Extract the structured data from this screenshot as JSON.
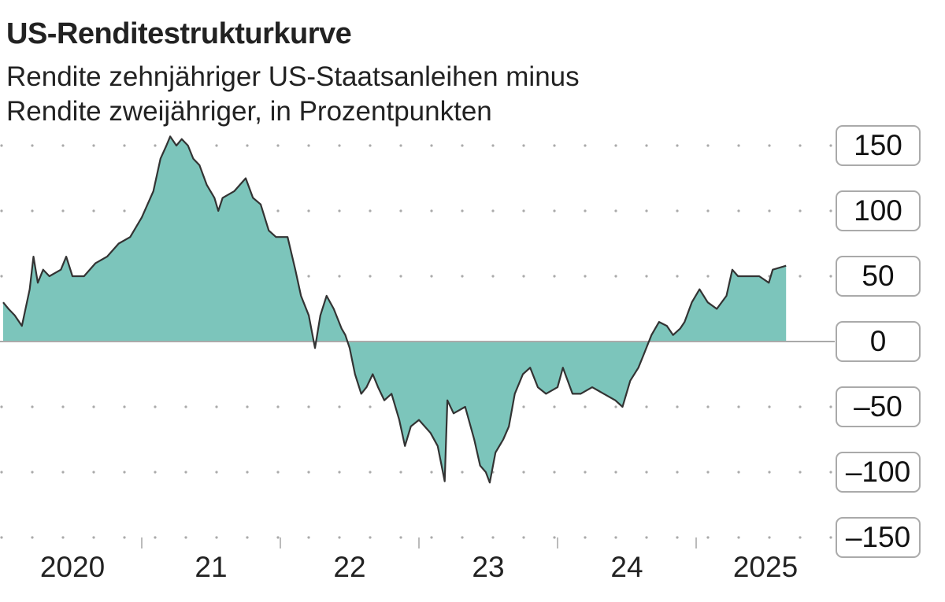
{
  "header": {
    "title": "US-Renditestrukturkurve",
    "subtitle_line1": "Rendite zehnjähriger US-Staatsanleihen minus",
    "subtitle_line2": "Rendite zweijähriger, in Prozentpunkten"
  },
  "chart_data": {
    "type": "area",
    "title": "US-Renditestrukturkurve",
    "subtitle": "Rendite zehnjähriger US-Staatsanleihen minus Rendite zweijähriger, in Prozentpunkten",
    "ylim": [
      -150,
      150
    ],
    "xlim": [
      "2020-01-01",
      "2025-12-31"
    ],
    "grid": "dotted horizontal",
    "fill_color": "#7cc5bb",
    "line_color": "#333333",
    "y_ticks": [
      "150",
      "100",
      "50",
      "0",
      "–50",
      "–100",
      "–150"
    ],
    "y_tick_values": [
      150,
      100,
      50,
      0,
      -50,
      -100,
      -150
    ],
    "x_ticks": [
      "2020",
      "21",
      "22",
      "23",
      "24",
      "2025"
    ],
    "x_tick_years": [
      2020,
      2021,
      2022,
      2023,
      2024,
      2025
    ],
    "points": [
      [
        "2020-01-01",
        30
      ],
      [
        "2020-01-15",
        25
      ],
      [
        "2020-02-01",
        20
      ],
      [
        "2020-02-20",
        12
      ],
      [
        "2020-03-10",
        40
      ],
      [
        "2020-03-20",
        65
      ],
      [
        "2020-04-01",
        45
      ],
      [
        "2020-04-15",
        55
      ],
      [
        "2020-05-01",
        50
      ],
      [
        "2020-06-01",
        55
      ],
      [
        "2020-06-15",
        65
      ],
      [
        "2020-07-01",
        50
      ],
      [
        "2020-08-01",
        50
      ],
      [
        "2020-09-01",
        60
      ],
      [
        "2020-10-01",
        65
      ],
      [
        "2020-11-01",
        75
      ],
      [
        "2020-12-01",
        80
      ],
      [
        "2021-01-01",
        95
      ],
      [
        "2021-02-01",
        115
      ],
      [
        "2021-02-20",
        140
      ],
      [
        "2021-03-05",
        150
      ],
      [
        "2021-03-15",
        157
      ],
      [
        "2021-04-01",
        150
      ],
      [
        "2021-04-15",
        155
      ],
      [
        "2021-05-01",
        150
      ],
      [
        "2021-05-15",
        140
      ],
      [
        "2021-06-01",
        135
      ],
      [
        "2021-06-20",
        120
      ],
      [
        "2021-07-10",
        110
      ],
      [
        "2021-07-20",
        100
      ],
      [
        "2021-08-01",
        110
      ],
      [
        "2021-09-01",
        115
      ],
      [
        "2021-10-01",
        125
      ],
      [
        "2021-10-20",
        110
      ],
      [
        "2021-11-10",
        105
      ],
      [
        "2021-12-01",
        85
      ],
      [
        "2021-12-20",
        80
      ],
      [
        "2022-01-01",
        80
      ],
      [
        "2022-01-20",
        80
      ],
      [
        "2022-02-10",
        55
      ],
      [
        "2022-02-25",
        35
      ],
      [
        "2022-03-15",
        20
      ],
      [
        "2022-04-01",
        -5
      ],
      [
        "2022-04-15",
        20
      ],
      [
        "2022-05-01",
        35
      ],
      [
        "2022-05-20",
        25
      ],
      [
        "2022-06-10",
        10
      ],
      [
        "2022-06-20",
        5
      ],
      [
        "2022-07-01",
        -5
      ],
      [
        "2022-07-15",
        -25
      ],
      [
        "2022-08-01",
        -40
      ],
      [
        "2022-08-15",
        -35
      ],
      [
        "2022-09-01",
        -25
      ],
      [
        "2022-09-15",
        -35
      ],
      [
        "2022-10-01",
        -45
      ],
      [
        "2022-10-20",
        -40
      ],
      [
        "2022-11-10",
        -60
      ],
      [
        "2022-11-25",
        -80
      ],
      [
        "2022-12-10",
        -65
      ],
      [
        "2023-01-01",
        -60
      ],
      [
        "2023-02-01",
        -70
      ],
      [
        "2023-02-20",
        -80
      ],
      [
        "2023-03-08",
        -107
      ],
      [
        "2023-03-15",
        -45
      ],
      [
        "2023-04-01",
        -55
      ],
      [
        "2023-05-01",
        -50
      ],
      [
        "2023-05-25",
        -75
      ],
      [
        "2023-06-10",
        -95
      ],
      [
        "2023-06-25",
        -100
      ],
      [
        "2023-07-05",
        -108
      ],
      [
        "2023-07-20",
        -85
      ],
      [
        "2023-08-10",
        -75
      ],
      [
        "2023-08-25",
        -65
      ],
      [
        "2023-09-10",
        -40
      ],
      [
        "2023-10-01",
        -25
      ],
      [
        "2023-10-20",
        -20
      ],
      [
        "2023-11-10",
        -35
      ],
      [
        "2023-12-01",
        -40
      ],
      [
        "2024-01-01",
        -35
      ],
      [
        "2024-01-15",
        -20
      ],
      [
        "2024-02-10",
        -40
      ],
      [
        "2024-03-01",
        -40
      ],
      [
        "2024-04-01",
        -35
      ],
      [
        "2024-05-01",
        -40
      ],
      [
        "2024-06-01",
        -45
      ],
      [
        "2024-06-20",
        -50
      ],
      [
        "2024-07-10",
        -30
      ],
      [
        "2024-08-01",
        -20
      ],
      [
        "2024-08-15",
        -10
      ],
      [
        "2024-09-05",
        5
      ],
      [
        "2024-09-25",
        15
      ],
      [
        "2024-10-15",
        12
      ],
      [
        "2024-11-01",
        5
      ],
      [
        "2024-11-20",
        10
      ],
      [
        "2024-12-01",
        15
      ],
      [
        "2024-12-20",
        30
      ],
      [
        "2025-01-10",
        40
      ],
      [
        "2025-02-01",
        30
      ],
      [
        "2025-02-25",
        25
      ],
      [
        "2025-03-20",
        35
      ],
      [
        "2025-04-05",
        55
      ],
      [
        "2025-04-20",
        50
      ],
      [
        "2025-05-15",
        50
      ],
      [
        "2025-06-15",
        50
      ],
      [
        "2025-07-10",
        45
      ],
      [
        "2025-07-20",
        55
      ],
      [
        "2025-08-25",
        58
      ]
    ]
  }
}
